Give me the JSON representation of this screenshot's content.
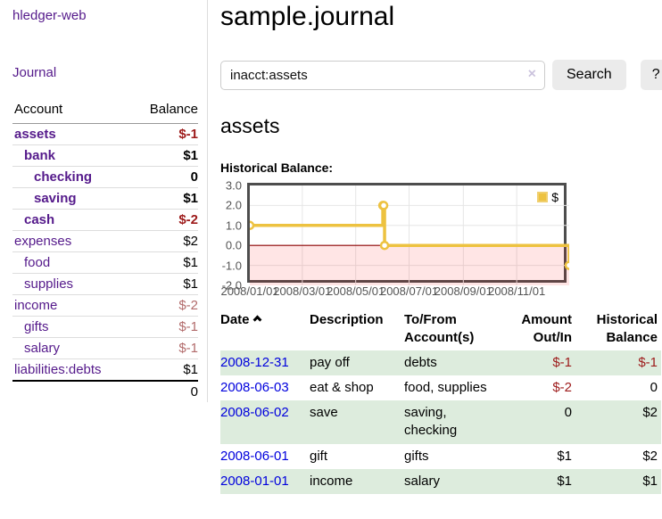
{
  "sidebar": {
    "app_title": "hledger-web",
    "journal_link": "Journal",
    "accounts": {
      "header": {
        "account": "Account",
        "balance": "Balance"
      },
      "rows": [
        {
          "name": "assets",
          "balance": "$-1"
        },
        {
          "name": "bank",
          "balance": "$1"
        },
        {
          "name": "checking",
          "balance": "0"
        },
        {
          "name": "saving",
          "balance": "$1"
        },
        {
          "name": "cash",
          "balance": "$-2"
        },
        {
          "name": "expenses",
          "balance": "$2"
        },
        {
          "name": "food",
          "balance": "$1"
        },
        {
          "name": "supplies",
          "balance": "$1"
        },
        {
          "name": "income",
          "balance": "$-2"
        },
        {
          "name": "gifts",
          "balance": "$-1"
        },
        {
          "name": "salary",
          "balance": "$-1"
        },
        {
          "name": "liabilities:debts",
          "balance": "$1"
        }
      ],
      "total": "0"
    }
  },
  "main": {
    "page_title": "sample.journal",
    "search": {
      "value": "inacct:assets",
      "clear_icon": "×",
      "button": "Search",
      "help_button": "?"
    },
    "account_heading": "assets",
    "section_label": "Historical Balance:"
  },
  "register": {
    "headers": {
      "date": "Date",
      "description": "Description",
      "accounts": "To/From Account(s)",
      "amount": "Amount Out/In",
      "balance": "Historical Balance"
    },
    "rows": [
      {
        "date": "2008-12-31",
        "description": "pay off",
        "accounts": "debts",
        "amount": "$-1",
        "balance": "$-1"
      },
      {
        "date": "2008-06-03",
        "description": "eat & shop",
        "accounts": "food, supplies",
        "amount": "$-2",
        "balance": "0"
      },
      {
        "date": "2008-06-02",
        "description": "save",
        "accounts": "saving, checking",
        "amount": "0",
        "balance": "$2"
      },
      {
        "date": "2008-06-01",
        "description": "gift",
        "accounts": "gifts",
        "amount": "$1",
        "balance": "$2"
      },
      {
        "date": "2008-01-01",
        "description": "income",
        "accounts": "salary",
        "amount": "$1",
        "balance": "$1"
      }
    ]
  },
  "chart_data": {
    "type": "line",
    "title": "Historical Balance:",
    "step": true,
    "x_range": [
      "2008-01-01",
      "2008-12-31"
    ],
    "ylim": [
      -2,
      3
    ],
    "yticks": [
      "3.0",
      "2.0",
      "1.0",
      "0.0",
      "-1.0",
      "-2.0"
    ],
    "xticks": [
      "2008/01/01",
      "2008/03/01",
      "2008/05/01",
      "2008/07/01",
      "2008/09/01",
      "2008/11/01"
    ],
    "series": [
      {
        "name": "$",
        "color": "#edc240",
        "points": [
          [
            "2008-01-01",
            1
          ],
          [
            "2008-06-01",
            2
          ],
          [
            "2008-06-02",
            2
          ],
          [
            "2008-06-03",
            0
          ],
          [
            "2008-12-31",
            -1
          ]
        ]
      }
    ],
    "legend_position": "top-right",
    "grid": true,
    "negative_region_color": "rgba(255,0,0,0.10)",
    "zero_line_color": "#8b0000"
  },
  "colors": {
    "link_purple": "#551a8b",
    "link_blue": "#0000dd",
    "negative_strong": "#9d1a1a",
    "negative_soft": "#b26b6b",
    "row_stripe_green": "#ddecdd",
    "series_gold": "#edc240",
    "chart_border": "#4d4d4d",
    "button_gray": "#ebebeb"
  }
}
